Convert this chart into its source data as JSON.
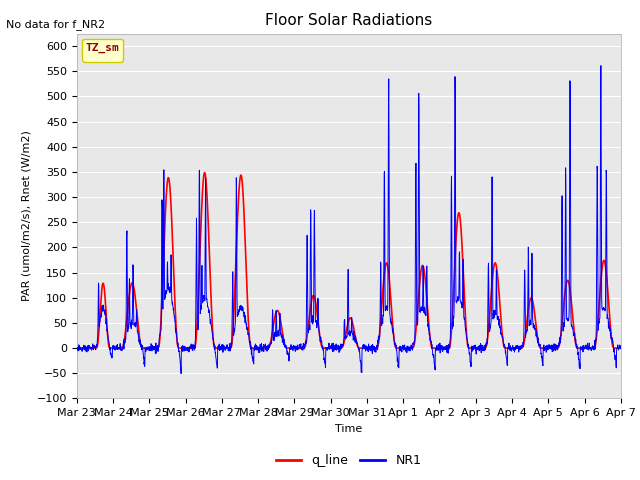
{
  "title": "Floor Solar Radiations",
  "xlabel": "Time",
  "ylabel": "PAR (umol/m2/s), Rnet (W/m2)",
  "ylim": [
    -100,
    625
  ],
  "yticks": [
    -100,
    -50,
    0,
    50,
    100,
    150,
    200,
    250,
    300,
    350,
    400,
    450,
    500,
    550,
    600
  ],
  "annotation_text": "No data for f_NR2",
  "legend_box_label": "TZ_sm",
  "legend_box_color": "#ffffcc",
  "legend_box_edge_color": "#cccc00",
  "line1_label": "q_line",
  "line1_color": "red",
  "line2_label": "NR1",
  "line2_color": "blue",
  "background_color": "#e8e8e8",
  "xtick_labels": [
    "Mar 23",
    "Mar 24",
    "Mar 25",
    "Mar 26",
    "Mar 27",
    "Mar 28",
    "Mar 29",
    "Mar 30",
    "Mar 31",
    "Apr 1",
    "Apr 2",
    "Apr 3",
    "Apr 4",
    "Apr 5",
    "Apr 6",
    "Apr 7"
  ],
  "title_fontsize": 11,
  "axis_label_fontsize": 8,
  "tick_fontsize": 8
}
